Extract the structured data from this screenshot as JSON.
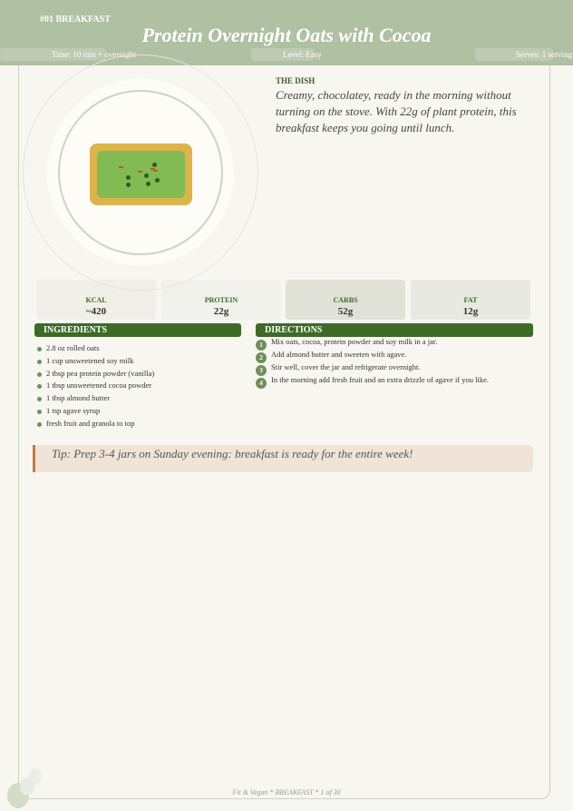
{
  "header": {
    "category": "#01  BREAKFAST",
    "title": "Protein Overnight Oats with Cocoa",
    "time": "Time: 10 min + overnight",
    "level": "Level: Easy",
    "serves": "Serves: 1 serving"
  },
  "dish": {
    "label": "THE DISH",
    "text": "Creamy, chocolatey, ready in the morning without turning on the stove. With 22g of plant protein, this breakfast keeps you going until lunch."
  },
  "nutrition": [
    {
      "label": "KCAL",
      "value": "~420"
    },
    {
      "label": "PROTEIN",
      "value": "22g"
    },
    {
      "label": "CARBS",
      "value": "52g"
    },
    {
      "label": "FAT",
      "value": "12g"
    }
  ],
  "ingredients": {
    "title": "INGREDIENTS",
    "items": [
      "2.8 oz rolled oats",
      "1 cup unsweetened soy milk",
      "2 tbsp pea protein powder (vanilla)",
      "1 tbsp unsweetened cocoa powder",
      "1 tbsp almond butter",
      "1 tsp agave syrup",
      "fresh fruit and granola to top"
    ]
  },
  "directions": {
    "title": "DIRECTIONS",
    "steps": [
      {
        "n": "1",
        "text": "Mix oats, cocoa, protein powder and soy milk in a jar."
      },
      {
        "n": "2",
        "text": "Add almond butter and sweeten with agave."
      },
      {
        "n": "3",
        "text": "Stir well, cover the jar and refrigerate overnight."
      },
      {
        "n": "4",
        "text": "In the morning add fresh fruit and an extra drizzle of agave if you like."
      }
    ]
  },
  "tip": "Tip: Prep 3-4 jars on Sunday evening: breakfast is ready for the entire week!",
  "footer": "Fit & Vegan  *  BREAKFAST  *  1 of 30",
  "colors": {
    "header": "#afc0a3",
    "accent": "#3d6b27",
    "tip_bg": "#efe4d6",
    "tip_border": "#c07a45"
  }
}
